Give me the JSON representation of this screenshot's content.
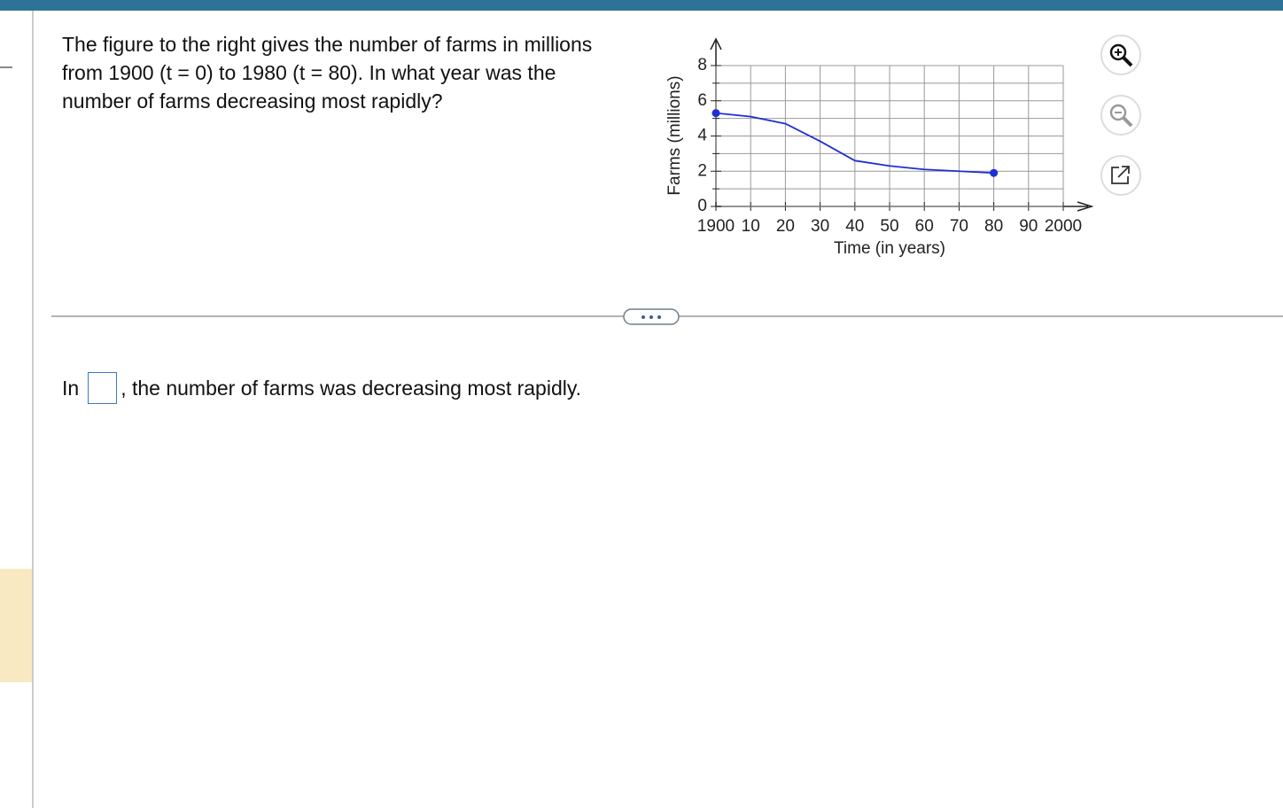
{
  "question": {
    "lines": [
      "The figure to the right gives the number of farms in millions",
      "from 1900 (t = 0) to 1980 (t = 80). In what year was the",
      "number of farms decreasing most rapidly?"
    ]
  },
  "chart_data": {
    "type": "line",
    "x_label": "Time (in years)",
    "y_label": "Farms (millions)",
    "x": [
      1900,
      1910,
      1920,
      1930,
      1940,
      1950,
      1960,
      1970,
      1980
    ],
    "series": [
      {
        "color": "#1f2fd6",
        "values": [
          5.3,
          5.1,
          4.7,
          3.7,
          2.6,
          2.3,
          2.1,
          2.0,
          1.9
        ]
      }
    ],
    "xlim": [
      1900,
      2000
    ],
    "xticks": [
      1900,
      {
        "value": 1910,
        "label": "10"
      },
      {
        "value": 1920,
        "label": "20"
      },
      {
        "value": 1930,
        "label": "30"
      },
      {
        "value": 1940,
        "label": "40"
      },
      {
        "value": 1950,
        "label": "50"
      },
      {
        "value": 1960,
        "label": "60"
      },
      {
        "value": 1970,
        "label": "70"
      },
      {
        "value": 1980,
        "label": "80"
      },
      {
        "value": 1990,
        "label": "90"
      },
      2000
    ],
    "ylim": [
      0,
      8
    ],
    "yticks": [
      0,
      2,
      4,
      6,
      8
    ],
    "yminor": [
      1,
      3,
      5,
      7
    ],
    "grid": true
  },
  "answer": {
    "prefix": "In",
    "suffix": ", the number of farms was decreasing most rapidly."
  }
}
